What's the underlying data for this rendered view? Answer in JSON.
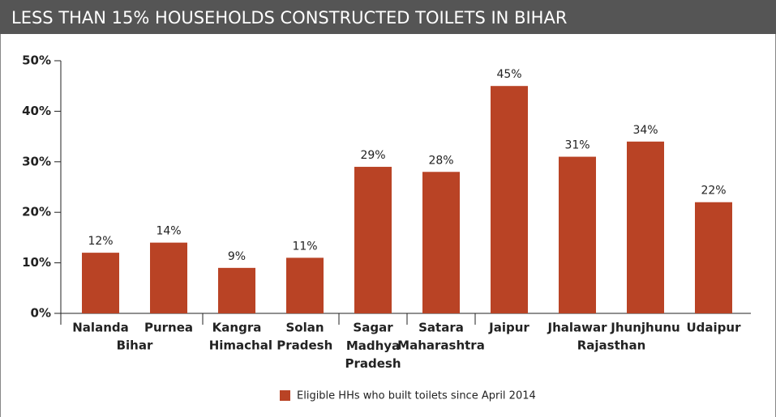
{
  "chart_data": {
    "type": "bar",
    "title": "LESS THAN 15% HOUSEHOLDS CONSTRUCTED TOILETS IN BIHAR",
    "categories": [
      "Nalanda",
      "Purnea",
      "Kangra",
      "Solan",
      "Sagar",
      "Satara",
      "Jaipur",
      "Jhalawar",
      "Jhunjhunu",
      "Udaipur"
    ],
    "groups": [
      {
        "label": "Bihar",
        "size": 2
      },
      {
        "label": "Himachal Pradesh",
        "size": 2
      },
      {
        "label": "Madhya Pradesh",
        "size": 1
      },
      {
        "label": "Maharashtra",
        "size": 1
      },
      {
        "label": "Rajasthan",
        "size": 4
      }
    ],
    "series": [
      {
        "name": "Eligible HHs who built toilets since April 2014",
        "color": "#b94325",
        "values": [
          12,
          14,
          9,
          11,
          29,
          28,
          45,
          31,
          34,
          22
        ],
        "value_labels": [
          "12%",
          "14%",
          "9%",
          "11%",
          "29%",
          "28%",
          "45%",
          "31%",
          "34%",
          "22%"
        ]
      }
    ],
    "ylim": [
      0,
      50
    ],
    "yticks": [
      {
        "value": 0,
        "label": "0%"
      },
      {
        "value": 10,
        "label": "10%"
      },
      {
        "value": 20,
        "label": "20%"
      },
      {
        "value": 30,
        "label": "30%"
      },
      {
        "value": 40,
        "label": "40%"
      },
      {
        "value": 50,
        "label": "50%"
      }
    ],
    "legend": "bottom"
  }
}
